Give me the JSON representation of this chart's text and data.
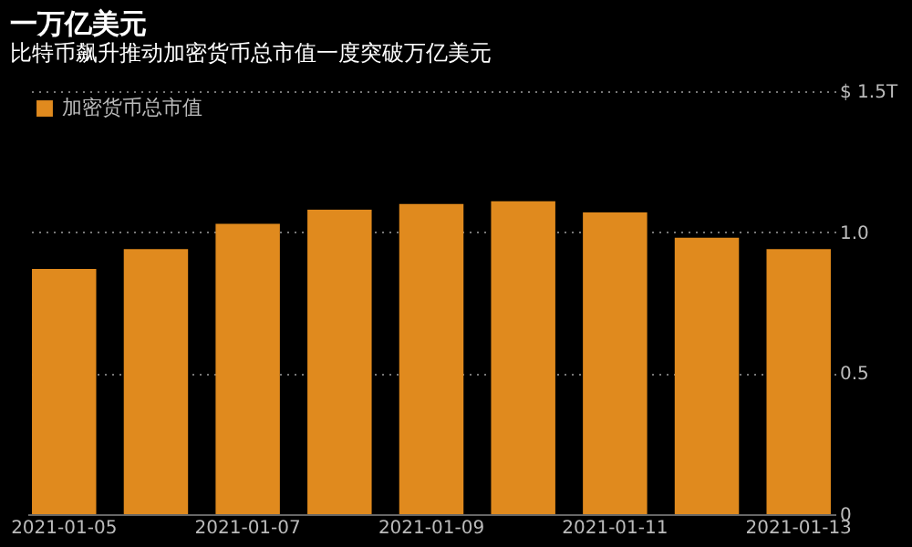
{
  "chart_data": {
    "type": "bar",
    "title": "一万亿美元",
    "subtitle": "比特币飙升推动加密货币总市值一度突破万亿美元",
    "categories": [
      "2021-01-05",
      null,
      "2021-01-07",
      null,
      "2021-01-09",
      null,
      "2021-01-11",
      null,
      "2021-01-13"
    ],
    "series": [
      {
        "name": "加密货币总市值",
        "color": "#e08a1e",
        "values": [
          0.87,
          0.94,
          1.03,
          1.08,
          1.1,
          1.11,
          1.07,
          0.98,
          0.94
        ]
      }
    ],
    "ylim": [
      0,
      1.5
    ],
    "yticks": [
      0,
      0.5,
      {
        "value": 1,
        "label": "1.0"
      },
      {
        "value": 1.5,
        "label": "$ 1.5T"
      }
    ],
    "grid": "y",
    "legend": "top left"
  }
}
